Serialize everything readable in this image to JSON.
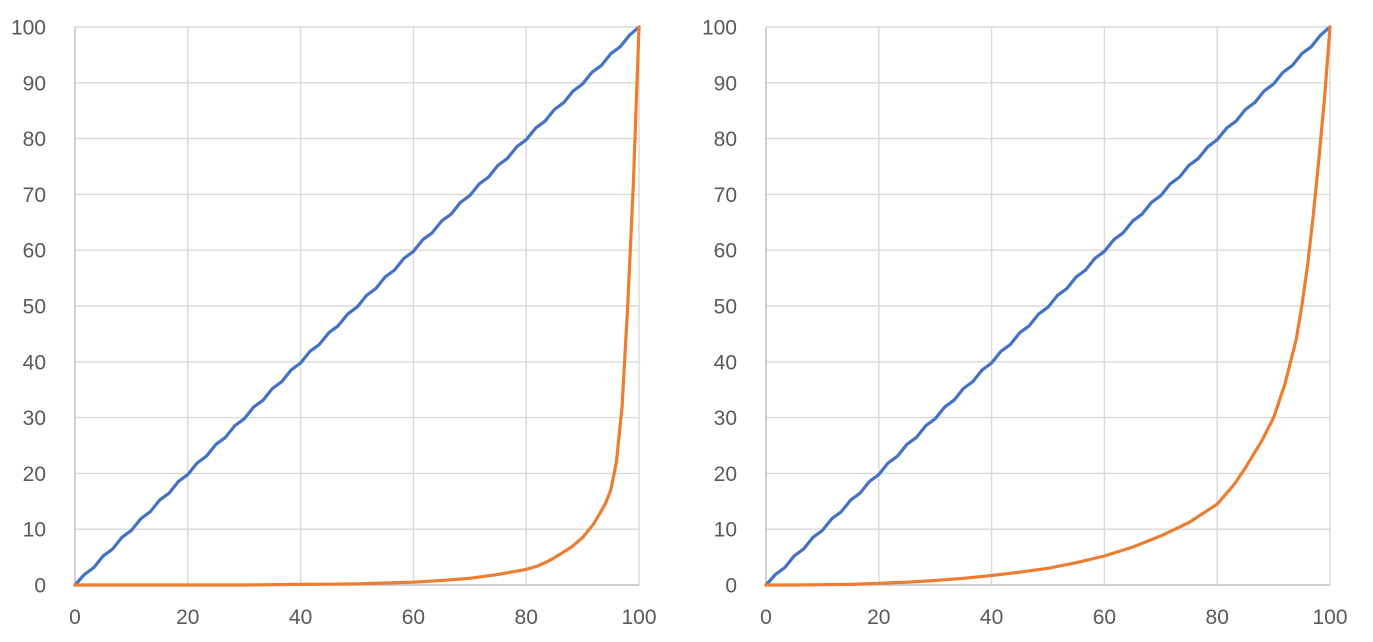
{
  "figure": {
    "background": "#ffffff",
    "description": "Two line charts, each showing a straight diagonal equality line and a convex concentration (Lorenz-style) curve on 0-100 axes"
  },
  "colors": {
    "equality_line": "#4472C4",
    "curve_line": "#ED7D31",
    "gridline": "#D9D9D9",
    "axis_line": "#BFBFBF",
    "tick_label": "#595959",
    "background": "#FFFFFF"
  },
  "chart_data": [
    {
      "type": "line",
      "title": "",
      "xlabel": "",
      "ylabel": "",
      "xlim": [
        0,
        100
      ],
      "ylim": [
        0,
        100
      ],
      "x_ticks": [
        0,
        20,
        40,
        60,
        80,
        100
      ],
      "y_ticks": [
        0,
        10,
        20,
        30,
        40,
        50,
        60,
        70,
        80,
        90,
        100
      ],
      "grid": true,
      "legend": false,
      "series": [
        {
          "name": "equality line (y = x)",
          "color": "#4472C4",
          "jagged": true,
          "points": [
            [
              0,
              0
            ],
            [
              100,
              100
            ]
          ]
        },
        {
          "name": "concentration curve (extreme)",
          "color": "#ED7D31",
          "jagged": false,
          "points": [
            [
              0,
              0
            ],
            [
              10,
              0
            ],
            [
              20,
              0
            ],
            [
              30,
              0
            ],
            [
              35,
              0.05
            ],
            [
              40,
              0.1
            ],
            [
              45,
              0.15
            ],
            [
              50,
              0.2
            ],
            [
              55,
              0.35
            ],
            [
              60,
              0.5
            ],
            [
              65,
              0.8
            ],
            [
              70,
              1.2
            ],
            [
              75,
              1.9
            ],
            [
              80,
              2.8
            ],
            [
              82,
              3.4
            ],
            [
              84,
              4.3
            ],
            [
              86,
              5.5
            ],
            [
              88,
              6.8
            ],
            [
              90,
              8.5
            ],
            [
              92,
              11
            ],
            [
              94,
              14.5
            ],
            [
              95,
              17
            ],
            [
              96,
              22
            ],
            [
              97,
              32
            ],
            [
              98,
              50
            ],
            [
              99,
              72
            ],
            [
              100,
              100
            ]
          ]
        }
      ]
    },
    {
      "type": "line",
      "title": "",
      "xlabel": "",
      "ylabel": "",
      "xlim": [
        0,
        100
      ],
      "ylim": [
        0,
        100
      ],
      "x_ticks": [
        0,
        20,
        40,
        60,
        80,
        100
      ],
      "y_ticks": [
        0,
        10,
        20,
        30,
        40,
        50,
        60,
        70,
        80,
        90,
        100
      ],
      "grid": true,
      "legend": false,
      "series": [
        {
          "name": "equality line (y = x)",
          "color": "#4472C4",
          "jagged": true,
          "points": [
            [
              0,
              0
            ],
            [
              100,
              100
            ]
          ]
        },
        {
          "name": "concentration curve (moderate)",
          "color": "#ED7D31",
          "jagged": false,
          "points": [
            [
              0,
              0
            ],
            [
              5,
              0
            ],
            [
              10,
              0.05
            ],
            [
              15,
              0.1
            ],
            [
              20,
              0.3
            ],
            [
              25,
              0.5
            ],
            [
              30,
              0.8
            ],
            [
              35,
              1.2
            ],
            [
              40,
              1.7
            ],
            [
              45,
              2.3
            ],
            [
              50,
              3
            ],
            [
              55,
              4
            ],
            [
              60,
              5.2
            ],
            [
              65,
              6.8
            ],
            [
              70,
              8.8
            ],
            [
              75,
              11.2
            ],
            [
              80,
              14.5
            ],
            [
              83,
              18
            ],
            [
              85,
              21
            ],
            [
              88,
              26
            ],
            [
              90,
              30
            ],
            [
              92,
              36
            ],
            [
              94,
              44
            ],
            [
              95,
              50
            ],
            [
              96,
              57
            ],
            [
              97,
              66
            ],
            [
              98,
              76
            ],
            [
              99,
              87
            ],
            [
              100,
              100
            ]
          ]
        }
      ]
    }
  ]
}
